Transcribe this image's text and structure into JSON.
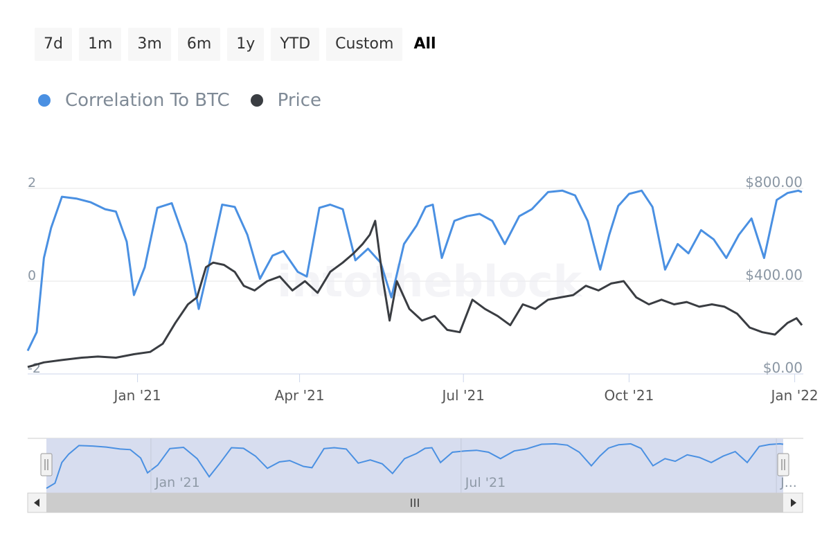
{
  "range_selector": {
    "buttons": [
      "7d",
      "1m",
      "3m",
      "6m",
      "1y",
      "YTD",
      "Custom"
    ],
    "active": "All"
  },
  "colors": {
    "correlation": "#4a90e2",
    "price": "#3a3d42",
    "axis_text": "#8a96a3",
    "navigator_fill": "#d5dbee"
  },
  "icons": {
    "scroll_left": "triangle-left-icon",
    "scroll_right": "triangle-right-icon",
    "scroll_grip": "grip-lines-icon",
    "handle": "drag-handle-icon"
  },
  "chart_data": {
    "type": "line",
    "x_ticks": [
      "Jan '21",
      "Apr '21",
      "Jul '21",
      "Oct '21",
      "Jan '22"
    ],
    "x_tick_dates": [
      "2021-01-01",
      "2021-04-01",
      "2021-07-01",
      "2021-10-01",
      "2022-01-01"
    ],
    "left_axis": {
      "ticks": [
        "-2",
        "0",
        "2"
      ],
      "range": [
        -2,
        2
      ]
    },
    "right_axis": {
      "ticks": [
        "$0.00",
        "$400.00",
        "$800.00"
      ],
      "range": [
        0,
        800
      ]
    },
    "grid": true,
    "legend_placement": "top-left",
    "navigator": {
      "x_ticks": [
        "Jan '21",
        "Jul '21",
        "J..."
      ]
    },
    "series": [
      {
        "name": "Correlation To BTC",
        "axis": "left",
        "x": [
          "2020-11-01",
          "2020-11-06",
          "2020-11-10",
          "2020-11-14",
          "2020-11-20",
          "2020-11-28",
          "2020-12-06",
          "2020-12-14",
          "2020-12-20",
          "2020-12-26",
          "2020-12-30",
          "2021-01-05",
          "2021-01-12",
          "2021-01-20",
          "2021-01-28",
          "2021-02-04",
          "2021-02-10",
          "2021-02-17",
          "2021-02-24",
          "2021-03-03",
          "2021-03-10",
          "2021-03-17",
          "2021-03-23",
          "2021-03-31",
          "2021-04-05",
          "2021-04-12",
          "2021-04-18",
          "2021-04-25",
          "2021-05-02",
          "2021-05-09",
          "2021-05-16",
          "2021-05-22",
          "2021-05-29",
          "2021-06-05",
          "2021-06-10",
          "2021-06-14",
          "2021-06-19",
          "2021-06-26",
          "2021-07-03",
          "2021-07-10",
          "2021-07-17",
          "2021-07-24",
          "2021-08-01",
          "2021-08-08",
          "2021-08-17",
          "2021-08-25",
          "2021-09-01",
          "2021-09-08",
          "2021-09-15",
          "2021-09-20",
          "2021-09-25",
          "2021-10-01",
          "2021-10-08",
          "2021-10-14",
          "2021-10-21",
          "2021-10-28",
          "2021-11-03",
          "2021-11-10",
          "2021-11-17",
          "2021-11-24",
          "2021-12-01",
          "2021-12-08",
          "2021-12-15",
          "2021-12-22",
          "2021-12-28",
          "2022-01-03",
          "2022-01-05"
        ],
        "y": [
          -1.5,
          -1.1,
          0.5,
          1.15,
          1.82,
          1.78,
          1.7,
          1.55,
          1.5,
          0.85,
          -0.3,
          0.3,
          1.58,
          1.68,
          0.8,
          -0.6,
          0.4,
          1.65,
          1.6,
          1.0,
          0.05,
          0.55,
          0.65,
          0.2,
          0.1,
          1.58,
          1.65,
          1.55,
          0.45,
          0.7,
          0.4,
          -0.35,
          0.8,
          1.2,
          1.6,
          1.65,
          0.5,
          1.3,
          1.4,
          1.45,
          1.3,
          0.8,
          1.4,
          1.55,
          1.92,
          1.95,
          1.85,
          1.3,
          0.25,
          1.0,
          1.62,
          1.88,
          1.95,
          1.6,
          0.25,
          0.8,
          0.6,
          1.1,
          0.9,
          0.5,
          1.0,
          1.35,
          0.5,
          1.75,
          1.9,
          1.95,
          1.92
        ]
      },
      {
        "name": "Price",
        "axis": "right",
        "x": [
          "2020-11-01",
          "2020-11-10",
          "2020-11-20",
          "2020-12-01",
          "2020-12-10",
          "2020-12-20",
          "2020-12-30",
          "2021-01-08",
          "2021-01-15",
          "2021-01-22",
          "2021-01-29",
          "2021-02-03",
          "2021-02-08",
          "2021-02-12",
          "2021-02-18",
          "2021-02-24",
          "2021-03-01",
          "2021-03-07",
          "2021-03-14",
          "2021-03-21",
          "2021-03-28",
          "2021-04-04",
          "2021-04-11",
          "2021-04-18",
          "2021-04-25",
          "2021-05-01",
          "2021-05-06",
          "2021-05-10",
          "2021-05-13",
          "2021-05-17",
          "2021-05-21",
          "2021-05-25",
          "2021-06-01",
          "2021-06-08",
          "2021-06-15",
          "2021-06-22",
          "2021-06-29",
          "2021-07-06",
          "2021-07-13",
          "2021-07-20",
          "2021-07-27",
          "2021-08-03",
          "2021-08-10",
          "2021-08-17",
          "2021-08-24",
          "2021-08-31",
          "2021-09-07",
          "2021-09-14",
          "2021-09-21",
          "2021-09-28",
          "2021-10-05",
          "2021-10-12",
          "2021-10-19",
          "2021-10-26",
          "2021-11-02",
          "2021-11-09",
          "2021-11-16",
          "2021-11-23",
          "2021-11-30",
          "2021-12-07",
          "2021-12-14",
          "2021-12-21",
          "2021-12-28",
          "2022-01-02",
          "2022-01-05"
        ],
        "y": [
          30,
          50,
          60,
          70,
          75,
          70,
          85,
          95,
          130,
          220,
          300,
          330,
          460,
          480,
          470,
          440,
          380,
          360,
          400,
          420,
          360,
          400,
          350,
          440,
          480,
          520,
          560,
          600,
          660,
          420,
          230,
          400,
          280,
          230,
          250,
          190,
          180,
          320,
          280,
          250,
          210,
          300,
          280,
          320,
          330,
          340,
          380,
          360,
          390,
          400,
          330,
          300,
          320,
          300,
          310,
          290,
          300,
          290,
          260,
          200,
          180,
          170,
          220,
          240,
          210
        ]
      }
    ]
  }
}
